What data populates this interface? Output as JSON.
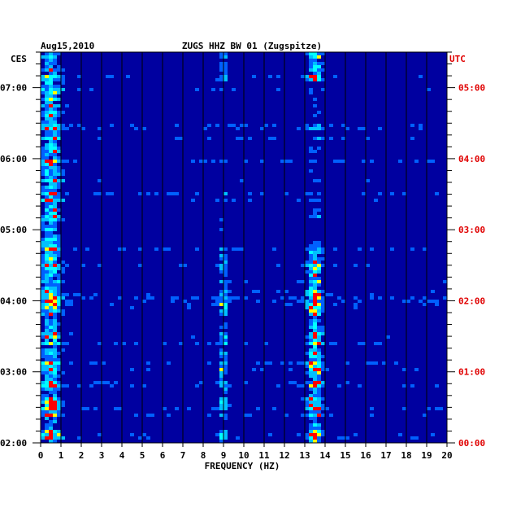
{
  "chart_data": {
    "type": "heatmap",
    "title": "ZUGS HHZ BW 01 (Zugspitze)",
    "date_label": "Aug15,2010",
    "left_axis_label": "CES",
    "right_axis_label": "UTC",
    "xlabel": "FREQUENCY (HZ)",
    "xlim": [
      0,
      20
    ],
    "x_ticks": [
      "0",
      "1",
      "2",
      "3",
      "4",
      "5",
      "6",
      "7",
      "8",
      "9",
      "10",
      "11",
      "12",
      "13",
      "14",
      "15",
      "16",
      "17",
      "18",
      "19",
      "20"
    ],
    "left_time_ticks": [
      "07:00",
      "06:00",
      "05:00",
      "04:00",
      "03:00",
      "02:00"
    ],
    "right_time_ticks": [
      "05:00",
      "04:00",
      "03:00",
      "02:00",
      "01:00",
      "00:00"
    ],
    "ylim_hours_ces": [
      2.0,
      7.5
    ],
    "colors": {
      "low": "#0000a0",
      "mid": "#0060ff",
      "high": "#00ffff",
      "peak": "#ffff00",
      "max": "#ff0000"
    },
    "energy_bands_hz": [
      {
        "name": "microseism",
        "center": 0.5,
        "width": 0.5,
        "intensity": 0.75
      },
      {
        "name": "band-13.5",
        "center": 13.5,
        "width": 0.35,
        "intensity": 0.85
      },
      {
        "name": "band-9",
        "center": 9.0,
        "width": 0.2,
        "intensity": 0.55
      }
    ],
    "grid": true
  }
}
